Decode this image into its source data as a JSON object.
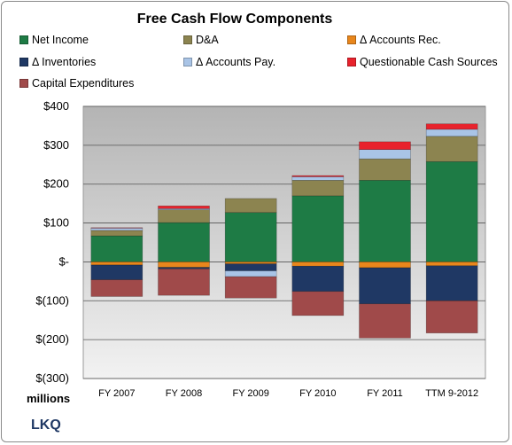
{
  "chart_data": {
    "type": "bar",
    "stacked": true,
    "title": "Free Cash Flow Components",
    "units_label": "millions",
    "company": "LKQ",
    "categories": [
      "FY 2007",
      "FY 2008",
      "FY 2009",
      "FY 2010",
      "FY 2011",
      "TTM 9-2012"
    ],
    "ylim": [
      -300,
      400
    ],
    "yticks": [
      400,
      300,
      200,
      100,
      0,
      -100,
      -200,
      -300
    ],
    "ytick_labels": [
      "$400",
      "$300",
      "$200",
      "$100",
      "$-",
      "$(100)",
      "$(200)",
      "$(300)"
    ],
    "grid": true,
    "legend_position": "top",
    "series": [
      {
        "name": "Net Income",
        "color": "#1e7b45",
        "values": [
          67,
          101,
          127,
          170,
          210,
          258
        ]
      },
      {
        "name": "D&A",
        "color": "#8c8450",
        "values": [
          14,
          33,
          36,
          40,
          55,
          65
        ]
      },
      {
        "name": "Δ Accounts Rec.",
        "color": "#e8861c",
        "values": [
          -8,
          -14,
          -5,
          -11,
          -15,
          -10
        ]
      },
      {
        "name": "Δ Inventories",
        "color": "#1f3864",
        "values": [
          -38,
          -4,
          -18,
          -65,
          -93,
          -90
        ]
      },
      {
        "name": "Δ Accounts Pay.",
        "color": "#a9c4e6",
        "values": [
          6,
          3,
          -15,
          9,
          24,
          18
        ]
      },
      {
        "name": "Questionable Cash Sources",
        "color": "#e8222c",
        "values": [
          1,
          7,
          0,
          3,
          20,
          14
        ]
      },
      {
        "name": "Capital Expenditures",
        "color": "#a04a4a",
        "values": [
          -43,
          -68,
          -55,
          -62,
          -88,
          -83
        ]
      }
    ]
  }
}
